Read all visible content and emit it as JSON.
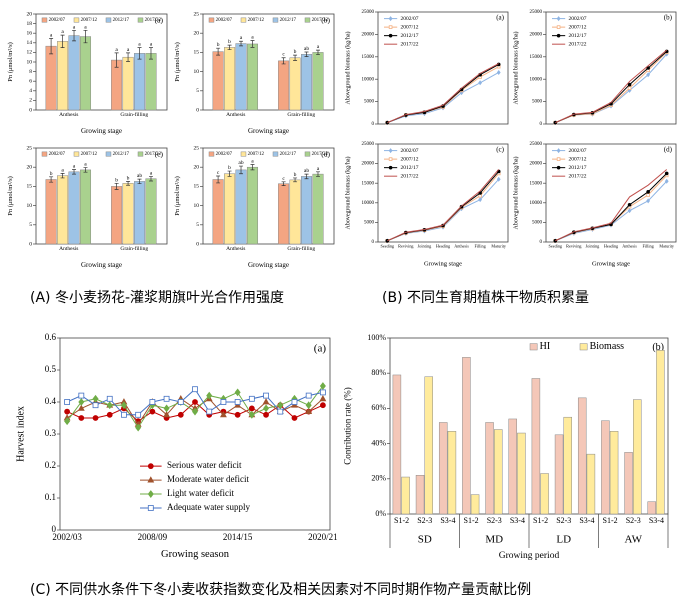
{
  "captions": [
    "(A) 冬小麦扬花-灌浆期旗叶光合作用强度",
    "(B) 不同生育期植株干物质积累量",
    "(C) 不同供水条件下冬小麦收获指数变化及相关因素对不同时期作物产量贡献比例"
  ],
  "chart_data": [
    {
      "type": "bar",
      "panel": "(a)",
      "ylabel": "Pn (μmol/m²/s)",
      "xlabel": "Growing stage",
      "categories": [
        "Anthesis",
        "Grain-filling"
      ],
      "ylim": [
        0,
        20
      ],
      "yticks": [
        0,
        2,
        4,
        6,
        8,
        10,
        12,
        14,
        16,
        18,
        20
      ],
      "legend": "top",
      "series": [
        {
          "name": "2002/07",
          "color": "#f4a582",
          "values": [
            13.3,
            10.4
          ],
          "errors": [
            1.6,
            1.5
          ],
          "letters": [
            "a",
            "a"
          ]
        },
        {
          "name": "2007/12",
          "color": "#ffe699",
          "values": [
            14.3,
            11.0
          ],
          "errors": [
            1.3,
            0.9
          ],
          "letters": [
            "a",
            "a"
          ]
        },
        {
          "name": "2012/17",
          "color": "#9dc3e6",
          "values": [
            15.5,
            11.8
          ],
          "errors": [
            1.1,
            1.2
          ],
          "letters": [
            "a",
            "a"
          ]
        },
        {
          "name": "2017/22",
          "color": "#a9d18e",
          "values": [
            15.3,
            11.8
          ],
          "errors": [
            1.3,
            1.2
          ],
          "letters": [
            "a",
            "a"
          ]
        }
      ]
    },
    {
      "type": "bar",
      "panel": "(b)",
      "ylabel": "Pn (μmol/m²/s)",
      "xlabel": "Growing stage",
      "categories": [
        "Anthesis",
        "Grain-filling"
      ],
      "ylim": [
        0,
        25
      ],
      "yticks": [
        0,
        5,
        10,
        15,
        20,
        25
      ],
      "legend": "top",
      "series": [
        {
          "name": "2002/07",
          "color": "#f4a582",
          "values": [
            15.2,
            12.8
          ],
          "errors": [
            0.9,
            0.8
          ],
          "letters": [
            "b",
            "c"
          ]
        },
        {
          "name": "2007/12",
          "color": "#ffe699",
          "values": [
            16.3,
            13.6
          ],
          "errors": [
            0.6,
            0.7
          ],
          "letters": [
            "b",
            "b"
          ]
        },
        {
          "name": "2012/17",
          "color": "#9dc3e6",
          "values": [
            17.3,
            14.5
          ],
          "errors": [
            0.6,
            0.6
          ],
          "letters": [
            "a",
            "ab"
          ]
        },
        {
          "name": "2017/22",
          "color": "#a9d18e",
          "values": [
            17.2,
            15.0
          ],
          "errors": [
            0.9,
            0.6
          ],
          "letters": [
            "a",
            "a"
          ]
        }
      ]
    },
    {
      "type": "bar",
      "panel": "(c)",
      "ylabel": "Pn (μmol/m²/s)",
      "xlabel": "Growing stage",
      "categories": [
        "Anthesis",
        "Grain-filling"
      ],
      "ylim": [
        0,
        25
      ],
      "yticks": [
        0,
        5,
        10,
        15,
        20,
        25
      ],
      "legend": "top",
      "series": [
        {
          "name": "2002/07",
          "color": "#f4a582",
          "values": [
            16.8,
            15.0
          ],
          "errors": [
            0.7,
            0.8
          ],
          "letters": [
            "b",
            "b"
          ]
        },
        {
          "name": "2007/12",
          "color": "#ffe699",
          "values": [
            17.8,
            15.8
          ],
          "errors": [
            0.6,
            0.5
          ],
          "letters": [
            "a",
            "b"
          ]
        },
        {
          "name": "2012/17",
          "color": "#9dc3e6",
          "values": [
            18.8,
            16.3
          ],
          "errors": [
            0.6,
            0.6
          ],
          "letters": [
            "a",
            "ab"
          ]
        },
        {
          "name": "2017/22",
          "color": "#a9d18e",
          "values": [
            19.3,
            17.0
          ],
          "errors": [
            0.6,
            0.6
          ],
          "letters": [
            "a",
            "a"
          ]
        }
      ]
    },
    {
      "type": "bar",
      "panel": "(d)",
      "ylabel": "Pn (μmol/m²/s)",
      "xlabel": "Growing stage",
      "categories": [
        "Anthesis",
        "Grain-filling"
      ],
      "ylim": [
        0,
        25
      ],
      "yticks": [
        0,
        5,
        10,
        15,
        20,
        25
      ],
      "legend": "top",
      "series": [
        {
          "name": "2002/07",
          "color": "#f4a582",
          "values": [
            16.8,
            15.7
          ],
          "errors": [
            0.9,
            0.5
          ],
          "letters": [
            "c",
            "c"
          ]
        },
        {
          "name": "2007/12",
          "color": "#ffe699",
          "values": [
            18.3,
            16.7
          ],
          "errors": [
            0.7,
            0.5
          ],
          "letters": [
            "b",
            "b"
          ]
        },
        {
          "name": "2012/17",
          "color": "#9dc3e6",
          "values": [
            19.3,
            17.6
          ],
          "errors": [
            1.0,
            0.6
          ],
          "letters": [
            "ab",
            "ab"
          ]
        },
        {
          "name": "2017/22",
          "color": "#a9d18e",
          "values": [
            20.0,
            18.2
          ],
          "errors": [
            0.7,
            0.6
          ],
          "letters": [
            "a",
            "a"
          ]
        }
      ]
    },
    {
      "type": "line",
      "panel": "(a)",
      "ylabel": "Aboveground biomass (kg/ha)",
      "categories": [
        null,
        null,
        null,
        null,
        null,
        null,
        null
      ],
      "ylim": [
        0,
        25000
      ],
      "yticks": [
        0,
        5000,
        10000,
        15000,
        20000,
        25000
      ],
      "legend": "upper left",
      "series": [
        {
          "name": "2002/07",
          "color": "#8fb4e3",
          "marker": "diamond",
          "values": [
            300,
            1800,
            2300,
            3600,
            7000,
            9200,
            11500
          ]
        },
        {
          "name": "2007/12",
          "color": "#f4b183",
          "marker": "square",
          "values": [
            300,
            2000,
            2600,
            3800,
            7500,
            10500,
            12800
          ]
        },
        {
          "name": "2012/17",
          "color": "#000000",
          "marker": "circle",
          "values": [
            300,
            2000,
            2600,
            4000,
            7700,
            11000,
            13300
          ]
        },
        {
          "name": "2017/22",
          "color": "#c0504d",
          "marker": "none",
          "values": [
            300,
            2100,
            2800,
            4200,
            8000,
            11300,
            13500
          ]
        }
      ]
    },
    {
      "type": "line",
      "panel": "(b)",
      "ylabel": "Aboveground biomass (kg/ha)",
      "categories": [
        null,
        null,
        null,
        null,
        null,
        null,
        null
      ],
      "ylim": [
        0,
        25000
      ],
      "yticks": [
        0,
        5000,
        10000,
        15000,
        20000,
        25000
      ],
      "legend": "upper left",
      "series": [
        {
          "name": "2002/07",
          "color": "#8fb4e3",
          "marker": "diamond",
          "values": [
            300,
            2000,
            2200,
            4000,
            7500,
            11000,
            15600
          ]
        },
        {
          "name": "2007/12",
          "color": "#f4b183",
          "marker": "square",
          "values": [
            300,
            2000,
            2300,
            4200,
            8000,
            12000,
            16000
          ]
        },
        {
          "name": "2012/17",
          "color": "#000000",
          "marker": "circle",
          "values": [
            300,
            2100,
            2500,
            4500,
            8800,
            12500,
            16200
          ]
        },
        {
          "name": "2017/22",
          "color": "#c0504d",
          "marker": "none",
          "values": [
            300,
            2200,
            2600,
            4800,
            9500,
            13000,
            16500
          ]
        }
      ]
    },
    {
      "type": "line",
      "panel": "(c)",
      "ylabel": "Aboveground biomass (kg/ha)",
      "xlabel": "Growing stage",
      "categories": [
        "Seeding",
        "Reviving",
        "Jointing",
        "Heading",
        "Anthesis",
        "Filling",
        "Maturity"
      ],
      "ylim": [
        0,
        25000
      ],
      "yticks": [
        0,
        5000,
        10000,
        15000,
        20000,
        25000
      ],
      "legend": "upper left",
      "series": [
        {
          "name": "2002/07",
          "color": "#8fb4e3",
          "marker": "diamond",
          "values": [
            300,
            2200,
            2800,
            3800,
            8500,
            10800,
            16000
          ]
        },
        {
          "name": "2007/12",
          "color": "#f4b183",
          "marker": "square",
          "values": [
            300,
            2300,
            3000,
            4000,
            8800,
            11800,
            17500
          ]
        },
        {
          "name": "2012/17",
          "color": "#000000",
          "marker": "circle",
          "values": [
            300,
            2400,
            3100,
            4200,
            9000,
            12500,
            18000
          ]
        },
        {
          "name": "2017/22",
          "color": "#c0504d",
          "marker": "none",
          "values": [
            300,
            2500,
            3200,
            4300,
            9200,
            13000,
            18500
          ]
        }
      ]
    },
    {
      "type": "line",
      "panel": "(d)",
      "ylabel": "Aboveground biomass (kg/ha)",
      "xlabel": "Growing stage",
      "categories": [
        "Seeding",
        "Reviving",
        "Jointing",
        "Heading",
        "Anthesis",
        "Filling",
        "Maturity"
      ],
      "ylim": [
        0,
        25000
      ],
      "yticks": [
        0,
        5000,
        10000,
        15000,
        20000,
        25000
      ],
      "legend": "upper left",
      "series": [
        {
          "name": "2002/07",
          "color": "#8fb4e3",
          "marker": "diamond",
          "values": [
            300,
            2200,
            3200,
            4300,
            8000,
            10500,
            15500
          ]
        },
        {
          "name": "2007/12",
          "color": "#f4b183",
          "marker": "square",
          "values": [
            300,
            2400,
            3400,
            4500,
            9000,
            12000,
            17000
          ]
        },
        {
          "name": "2012/17",
          "color": "#000000",
          "marker": "circle",
          "values": [
            300,
            2500,
            3500,
            4500,
            9500,
            12800,
            17500
          ]
        },
        {
          "name": "2017/22",
          "color": "#c0504d",
          "marker": "none",
          "values": [
            300,
            2600,
            3600,
            4800,
            11500,
            14500,
            18500
          ]
        }
      ]
    },
    {
      "type": "line",
      "panel": "(a)",
      "ylabel": "Harvest index",
      "xlabel": "Growing season",
      "categories": [
        "2002/03",
        null,
        null,
        null,
        null,
        null,
        "2008/09",
        null,
        null,
        null,
        null,
        null,
        "2014/15",
        null,
        null,
        null,
        null,
        null,
        "2020/21"
      ],
      "ylim": [
        0,
        0.6
      ],
      "yticks": [
        0,
        0.1,
        0.2,
        0.3,
        0.4,
        0.5,
        0.6
      ],
      "legend": "lower left",
      "series": [
        {
          "name": "Serious water deficit",
          "color": "#c00000",
          "marker": "circle",
          "values": [
            0.37,
            0.35,
            0.35,
            0.36,
            0.38,
            0.34,
            0.37,
            0.35,
            0.36,
            0.4,
            0.36,
            0.37,
            0.36,
            0.38,
            0.36,
            0.39,
            0.35,
            0.37,
            0.39
          ]
        },
        {
          "name": "Moderate water deficit",
          "color": "#a0522d",
          "marker": "triangle",
          "values": [
            0.35,
            0.38,
            0.4,
            0.39,
            0.4,
            0.33,
            0.4,
            0.36,
            0.41,
            0.38,
            0.41,
            0.36,
            0.39,
            0.36,
            0.4,
            0.37,
            0.39,
            0.37,
            0.41
          ]
        },
        {
          "name": "Light water deficit",
          "color": "#70ad47",
          "marker": "diamond",
          "values": [
            0.34,
            0.4,
            0.41,
            0.39,
            0.39,
            0.32,
            0.39,
            0.38,
            0.4,
            0.37,
            0.42,
            0.41,
            0.43,
            0.36,
            0.38,
            0.39,
            0.41,
            0.39,
            0.45
          ]
        },
        {
          "name": "Adequate water supply",
          "color": "#4472c4",
          "marker": "square",
          "values": [
            0.4,
            0.42,
            0.39,
            0.41,
            0.36,
            0.36,
            0.4,
            0.41,
            0.4,
            0.44,
            0.37,
            0.4,
            0.4,
            0.41,
            0.42,
            0.37,
            0.4,
            0.42,
            0.43
          ]
        }
      ]
    },
    {
      "type": "bar",
      "panel": "(b)",
      "ylabel": "Contribution rate (%)",
      "xlabel": "Growing period",
      "categories": [
        "S1-2",
        "S2-3",
        "S3-4",
        "S1-2",
        "S2-3",
        "S3-4",
        "S1-2",
        "S2-3",
        "S3-4",
        "S1-2",
        "S2-3",
        "S3-4"
      ],
      "groups": [
        "SD",
        "MD",
        "LD",
        "AW"
      ],
      "ylim": [
        0,
        100
      ],
      "yticks": [
        {
          "value": 0,
          "label": "0%"
        },
        {
          "value": 20,
          "label": "20%"
        },
        {
          "value": 40,
          "label": "40%"
        },
        {
          "value": 60,
          "label": "60%"
        },
        {
          "value": 80,
          "label": "80%"
        },
        {
          "value": 100,
          "label": "100%"
        }
      ],
      "legend": "top",
      "series": [
        {
          "name": "HI",
          "color": "#f4c7b8",
          "values": [
            79,
            22,
            52,
            89,
            52,
            54,
            77,
            45,
            66,
            53,
            35,
            7
          ]
        },
        {
          "name": "Biomass",
          "color": "#ffeb9c",
          "values": [
            21,
            78,
            47,
            11,
            48,
            46,
            23,
            55,
            34,
            47,
            65,
            93
          ]
        }
      ]
    }
  ]
}
